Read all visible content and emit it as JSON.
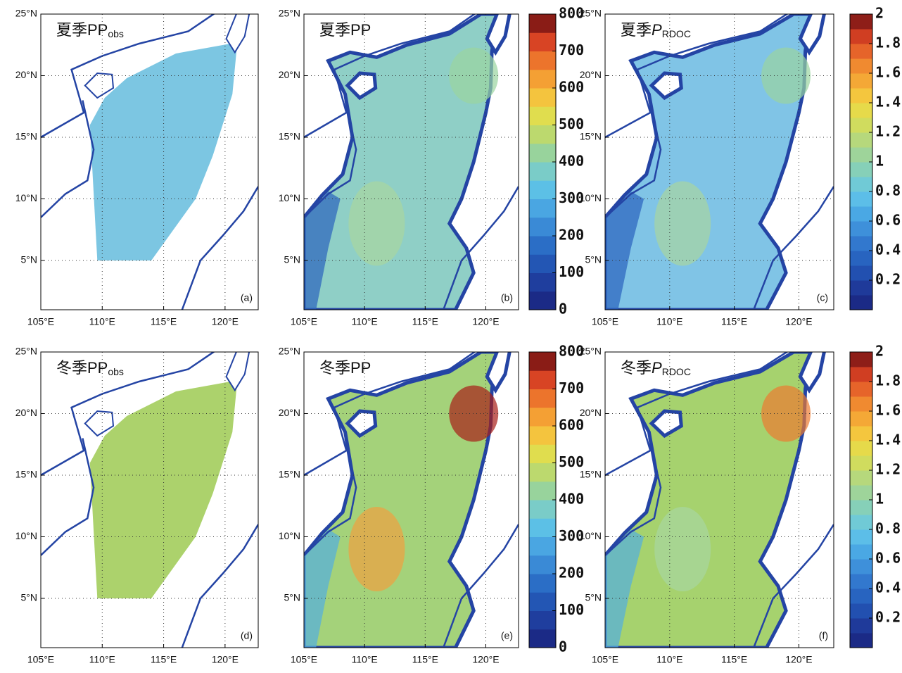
{
  "panels": [
    {
      "title": "夏季PP",
      "title_sub": "obs",
      "label": "(a)"
    },
    {
      "title": "夏季PP",
      "label": "(b)"
    },
    {
      "title": "夏季",
      "title_italic": "P",
      "title_sub": "RDOC",
      "label": "(c)"
    },
    {
      "title": "冬季PP",
      "title_sub": "obs",
      "label": "(d)"
    },
    {
      "title": "冬季PP",
      "label": "(e)"
    },
    {
      "title": "冬季",
      "title_italic": "P",
      "title_sub": "RDOC",
      "label": "(f)"
    }
  ],
  "latlim": [
    1,
    25
  ],
  "lonlim": [
    105,
    122.7
  ],
  "lat_ticks": [
    {
      "value": 25,
      "label": "25°N"
    },
    {
      "value": 20,
      "label": "20°N"
    },
    {
      "value": 15,
      "label": "15°N"
    },
    {
      "value": 10,
      "label": "10°N"
    },
    {
      "value": 5,
      "label": "5°N"
    }
  ],
  "lon_ticks": [
    {
      "value": 105,
      "label": "105°E"
    },
    {
      "value": 110,
      "label": "110°E"
    },
    {
      "value": 115,
      "label": "115°E"
    },
    {
      "value": 120,
      "label": "120°E"
    }
  ],
  "colorbars": [
    {
      "lim": [
        0,
        800
      ],
      "ticks": [
        0,
        100,
        200,
        300,
        400,
        500,
        600,
        700,
        800
      ],
      "colors": [
        "#1b2a86",
        "#1f3e9e",
        "#2356b4",
        "#2b6ec6",
        "#3a8ad6",
        "#4aa6e2",
        "#5cc0e6",
        "#7accc8",
        "#98d39c",
        "#bcd96e",
        "#e0dd4e",
        "#f4c43e",
        "#f4a034",
        "#ec742c",
        "#d84424",
        "#8a1c16"
      ]
    },
    {
      "lim": [
        0,
        2
      ],
      "ticks": [
        0.2,
        0.4,
        0.6,
        0.8,
        1,
        1.2,
        1.4,
        1.6,
        1.8,
        2
      ],
      "colors": [
        "#1b2a86",
        "#1f3a9a",
        "#2250b0",
        "#2864c0",
        "#3278ce",
        "#3e90da",
        "#4aa8e4",
        "#5cbee8",
        "#70cad6",
        "#86d0b8",
        "#9ed49a",
        "#b6d87c",
        "#d0dc5e",
        "#e6da4a",
        "#f4c63e",
        "#f4a836",
        "#f08a30",
        "#e6642a",
        "#d03e22",
        "#8e1e18"
      ]
    }
  ]
}
